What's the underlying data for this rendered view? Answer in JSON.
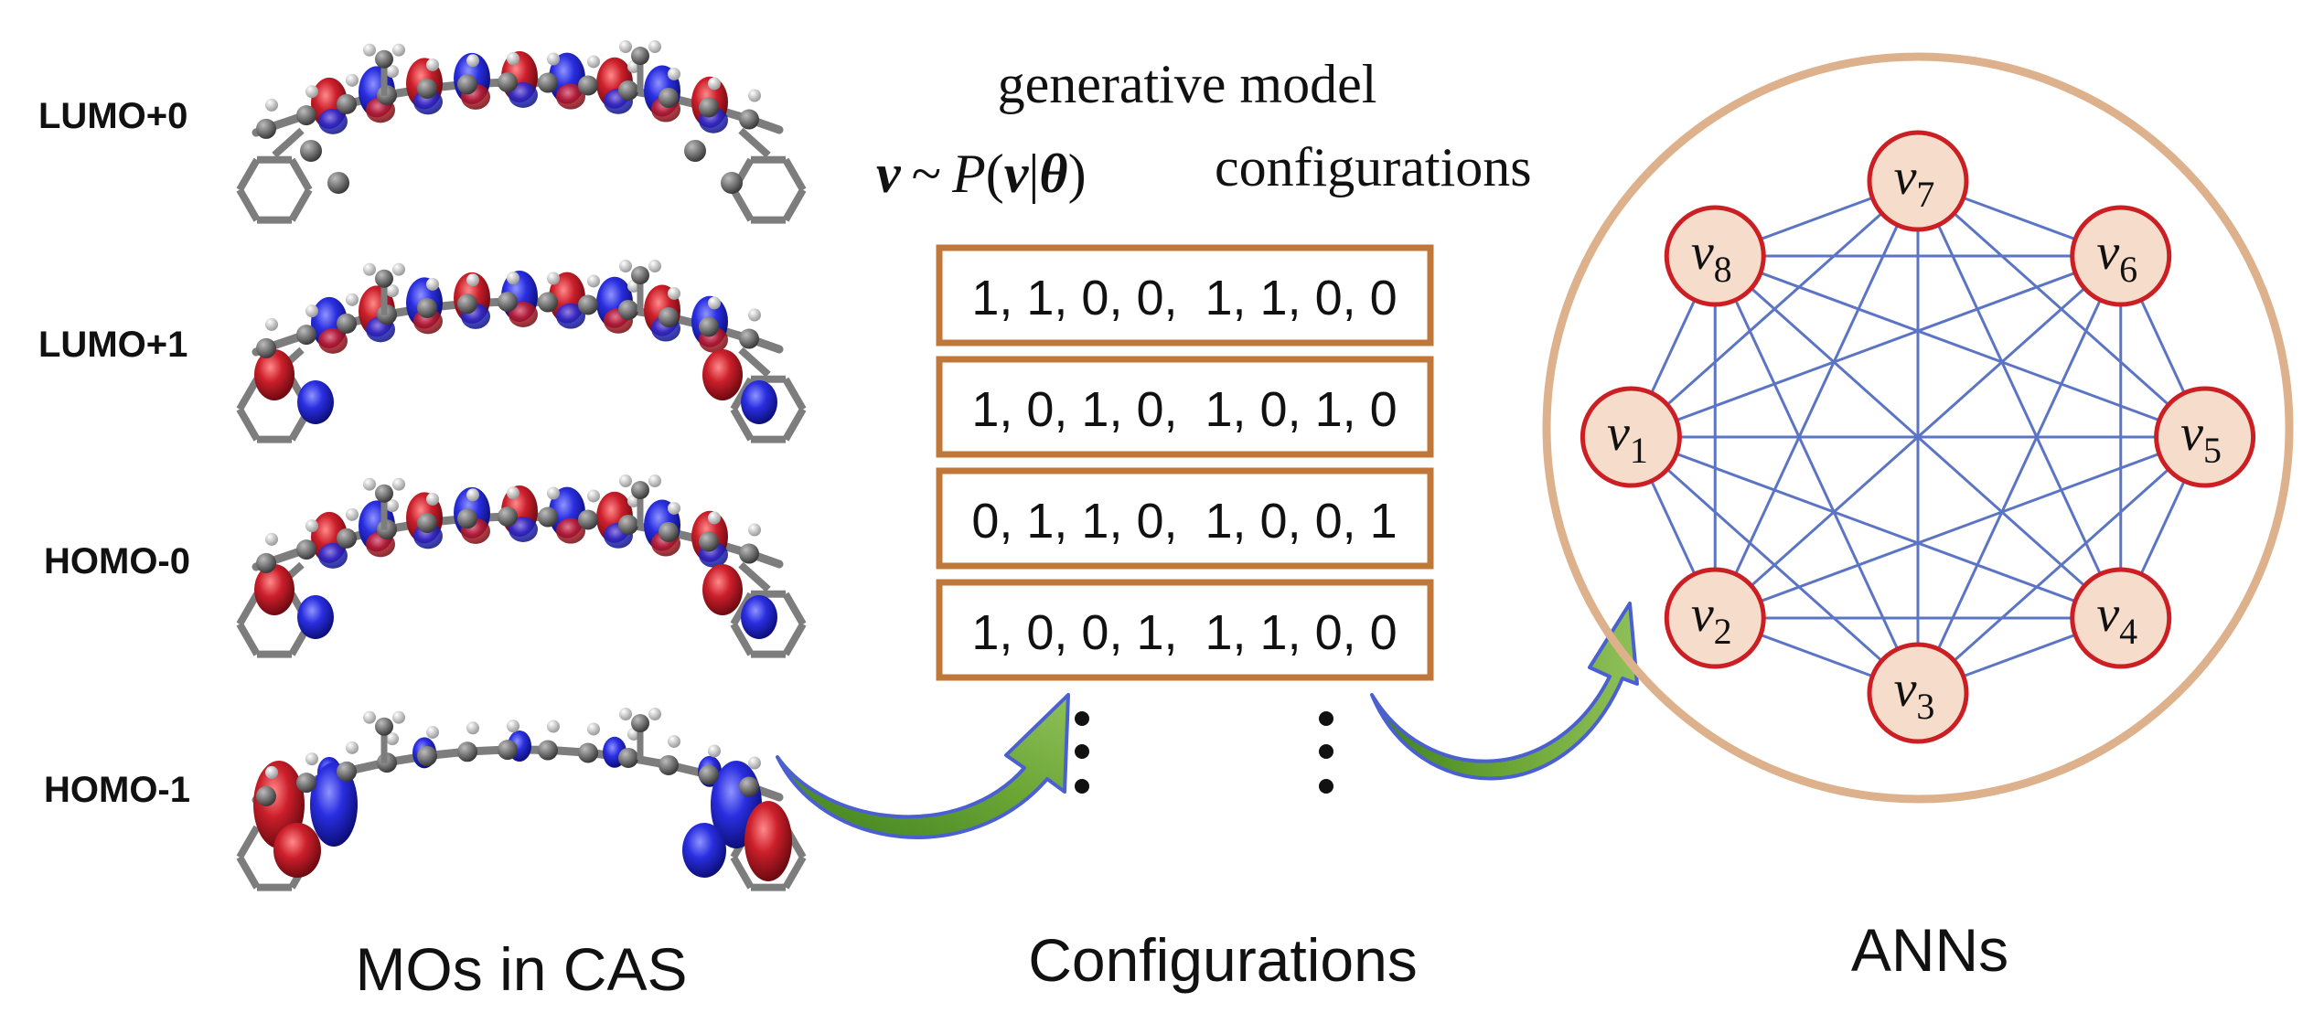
{
  "mo_panel": {
    "orbitals": [
      {
        "label": "LUMO+0"
      },
      {
        "label": "LUMO+1"
      },
      {
        "label": "HOMO-0"
      },
      {
        "label": "HOMO-1"
      }
    ],
    "caption": "MOs in CAS"
  },
  "config_panel": {
    "heading_line1": "generative model",
    "heading_line2_formula": "v ~ P(v|θ)",
    "heading_line2_text": "configurations",
    "rows": [
      "1, 1, 0, 0,  1, 1, 0, 0",
      "1, 0, 1, 0,  1, 0, 1, 0",
      "0, 1, 1, 0,  1, 0, 0, 1",
      "1, 0, 0, 1,  1, 1, 0, 0"
    ],
    "caption": "Configurations"
  },
  "ann_panel": {
    "nodes": [
      {
        "letter": "v",
        "sub": "1"
      },
      {
        "letter": "v",
        "sub": "2"
      },
      {
        "letter": "v",
        "sub": "3"
      },
      {
        "letter": "v",
        "sub": "4"
      },
      {
        "letter": "v",
        "sub": "5"
      },
      {
        "letter": "v",
        "sub": "6"
      },
      {
        "letter": "v",
        "sub": "7"
      },
      {
        "letter": "v",
        "sub": "8"
      }
    ],
    "caption": "ANNs"
  },
  "colors": {
    "box_border": "#c0783a",
    "ring": "#ddb18c",
    "node_fill": "#f6dccb",
    "node_border": "#cc1f24",
    "edge": "#5b74c4",
    "orbital_red": "#cc1f2b",
    "orbital_blue": "#2a2ee0",
    "arrow_green": "#5f9a2c",
    "arrow_blue": "#4a5fd0"
  }
}
